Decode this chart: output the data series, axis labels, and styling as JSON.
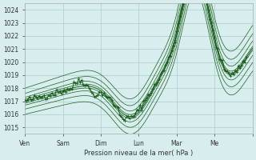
{
  "title": "",
  "xlabel": "Pression niveau de la mer( hPa )",
  "ylabel": "",
  "xlim": [
    0,
    144
  ],
  "ylim": [
    1014.5,
    1024.5
  ],
  "yticks": [
    1015,
    1016,
    1017,
    1018,
    1019,
    1020,
    1021,
    1022,
    1023,
    1024
  ],
  "xtick_labels": [
    "Ven",
    "Sam",
    "Dim",
    "Lun",
    "Mar",
    "Me"
  ],
  "xtick_positions": [
    0,
    24,
    48,
    72,
    96,
    120,
    144
  ],
  "background_color": "#d8eeee",
  "grid_color": "#aacccc",
  "line_color": "#1a5c1a",
  "marker": "+",
  "marker_size": 3
}
